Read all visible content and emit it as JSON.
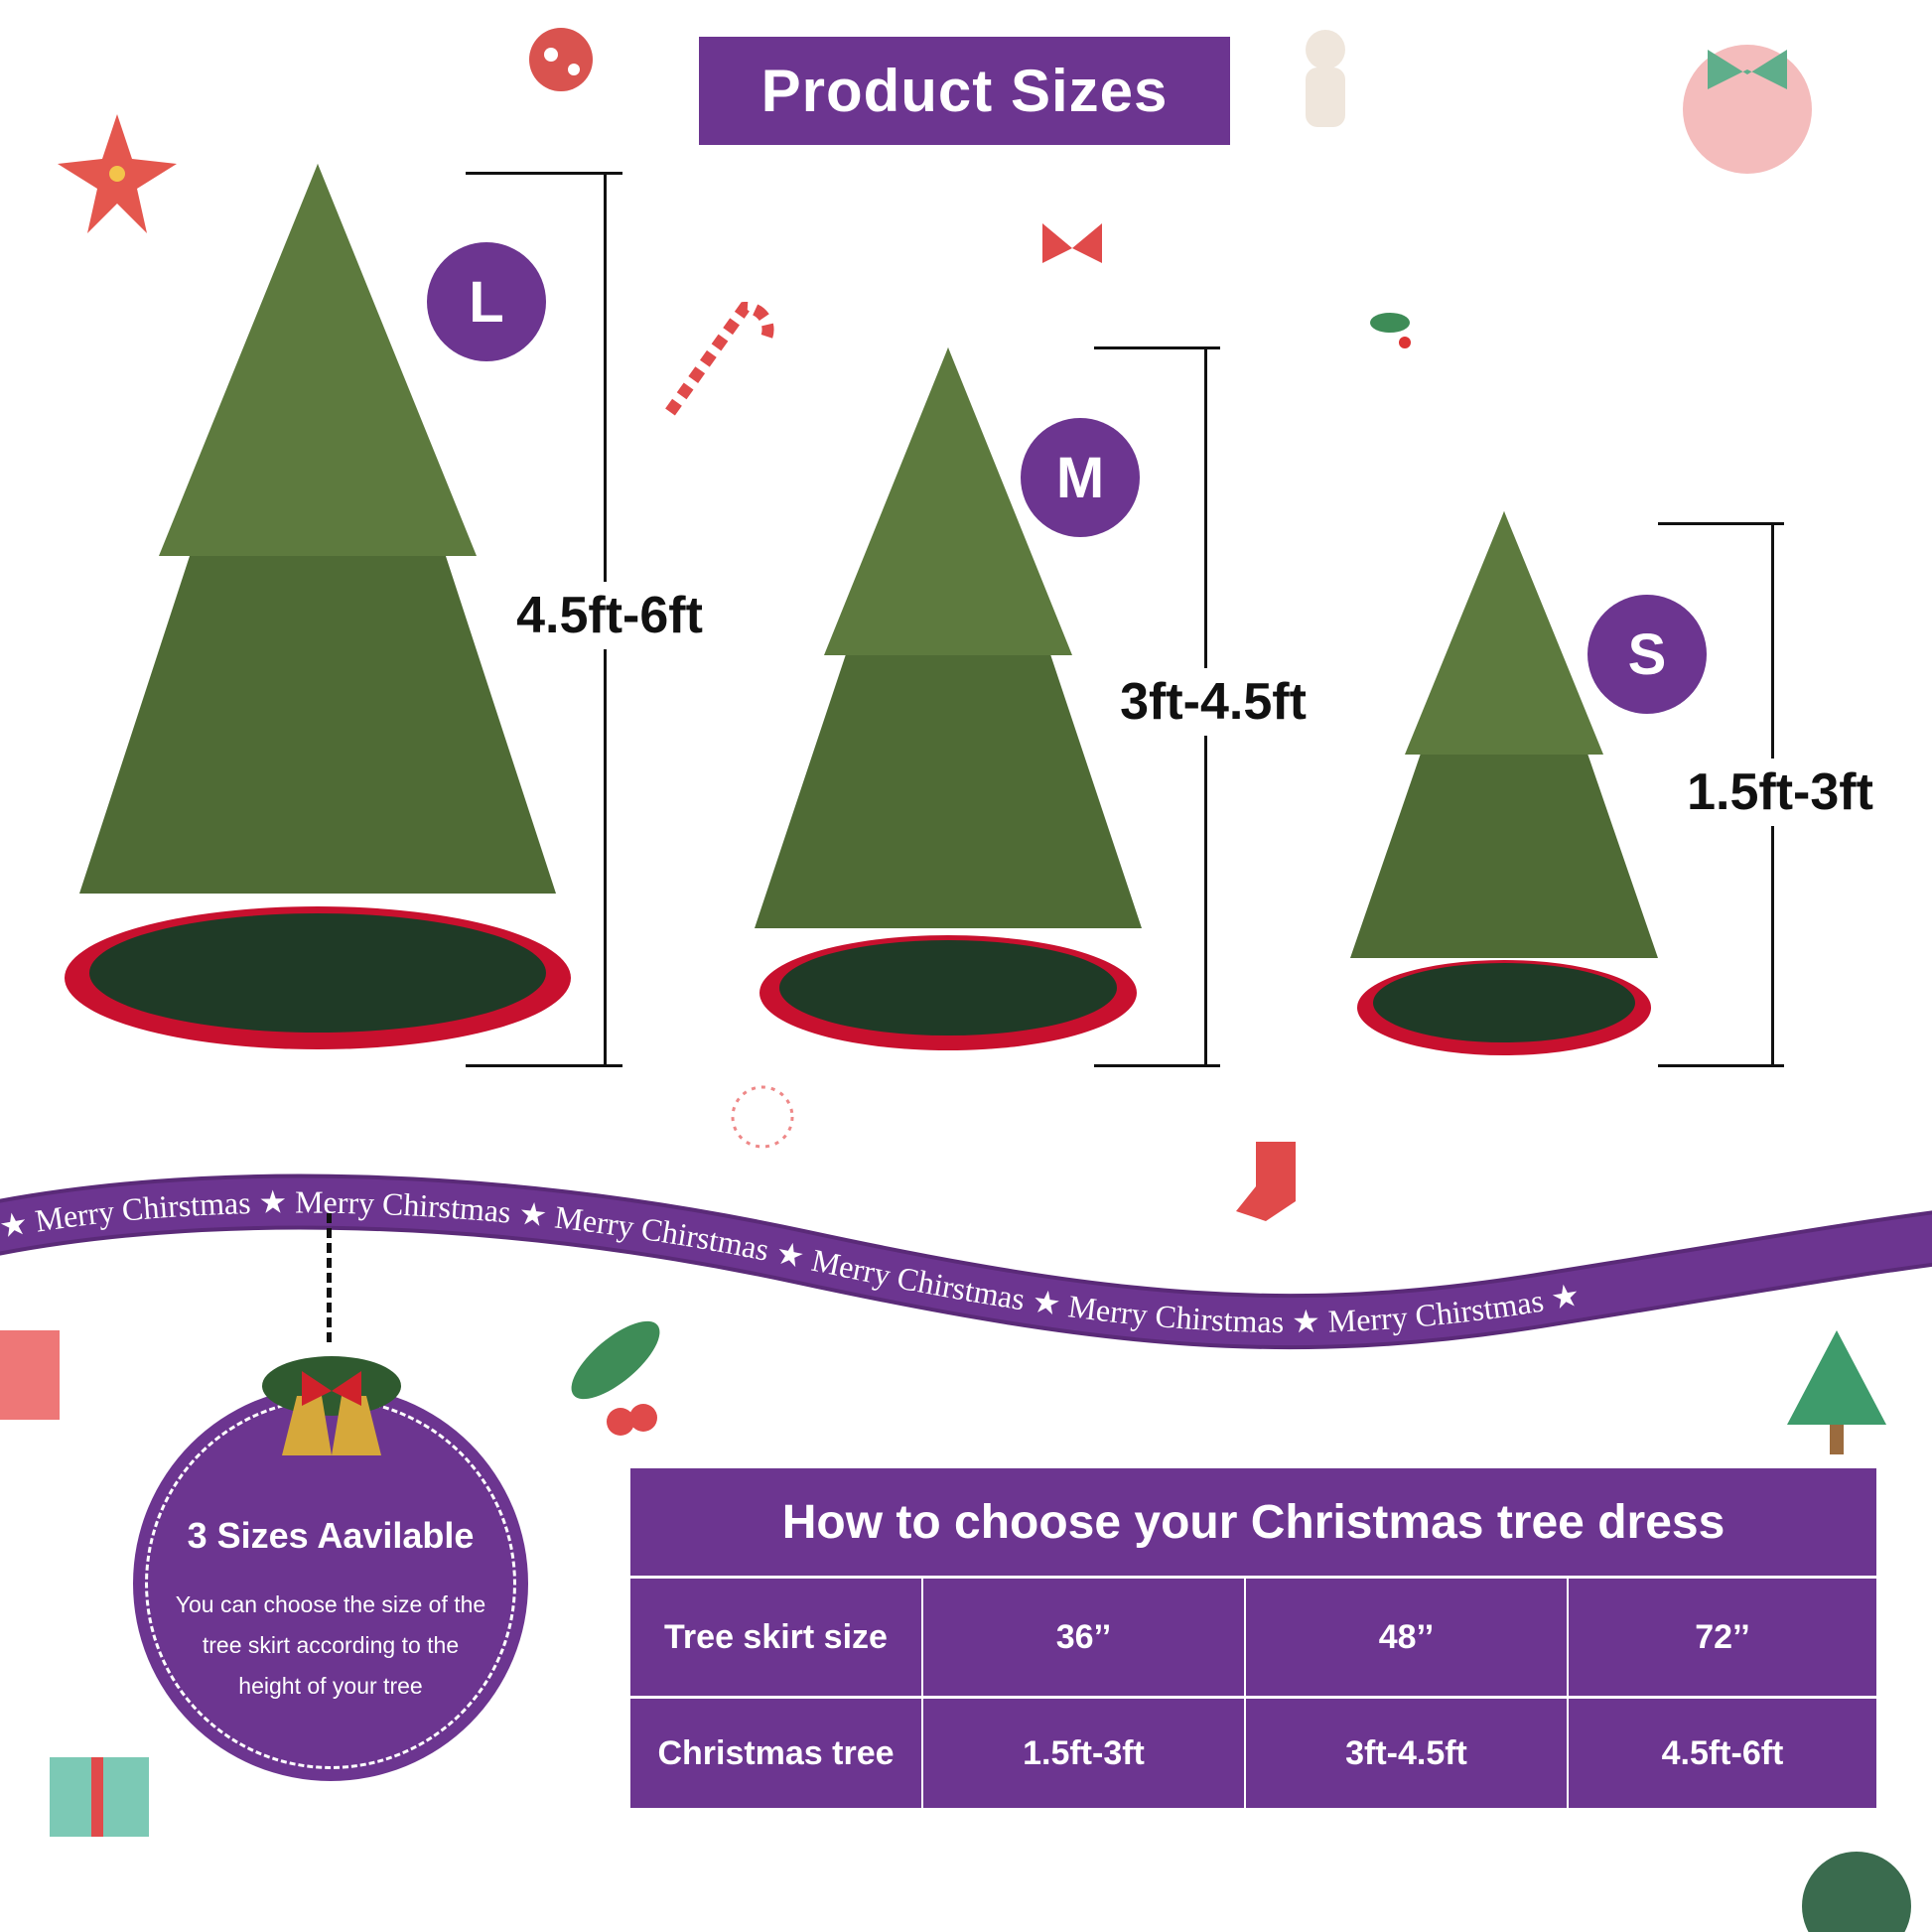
{
  "title": "Product Sizes",
  "sizes": [
    {
      "badge": "L",
      "height_range": "4.5ft-6ft"
    },
    {
      "badge": "M",
      "height_range": "3ft-4.5ft"
    },
    {
      "badge": "S",
      "height_range": "1.5ft-3ft"
    }
  ],
  "ribbon": {
    "text": "Merry Chirstmas",
    "separator": "★"
  },
  "info_circle": {
    "title": "3 Sizes Aavilable",
    "description": "You can choose the size of the tree skirt according to the height of your tree"
  },
  "table": {
    "title": "How to choose your Christmas tree dress",
    "rows": [
      {
        "label": "Tree skirt size",
        "values": [
          "36’’",
          "48’’",
          "72’’"
        ]
      },
      {
        "label": "Christmas tree",
        "values": [
          "1.5ft-3ft",
          "3ft-4.5ft",
          "4.5ft-6ft"
        ]
      }
    ]
  },
  "colors": {
    "brand_purple": "#6c3590",
    "tree_green": "#4f6b35",
    "skirt_red": "#c8102e",
    "skirt_green": "#1f3a26"
  }
}
